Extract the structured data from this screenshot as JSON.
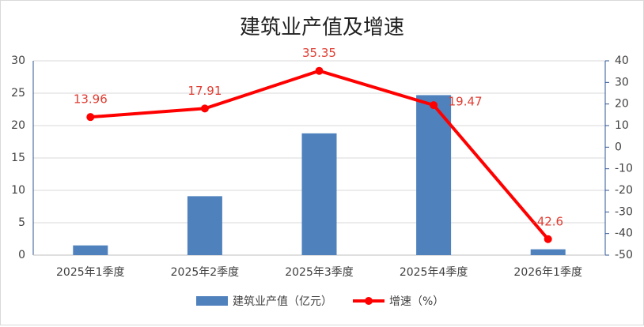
{
  "chart_data": {
    "type": "bar",
    "title": "建筑业产值及增速",
    "categories": [
      "2025年1季度",
      "2025年2季度",
      "2025年3季度",
      "2025年4季度",
      "2026年1季度"
    ],
    "series": [
      {
        "name": "建筑业产值（亿元）",
        "type": "bar",
        "color": "#4f81bd",
        "values": [
          1.5,
          9.1,
          18.8,
          24.7,
          0.9
        ]
      },
      {
        "name": "增速（%）",
        "type": "line",
        "axis": "y2",
        "color": "#ff0000",
        "values": [
          13.96,
          17.91,
          35.35,
          19.47,
          -42.6
        ],
        "label_color": "#e03c31"
      }
    ],
    "ylim": [
      0,
      30
    ],
    "yticks": [
      0,
      5,
      10,
      15,
      20,
      25,
      30
    ],
    "y2lim": [
      -50,
      40
    ],
    "y2ticks": [
      -50,
      -40,
      -30,
      -20,
      -10,
      0,
      10,
      20,
      30,
      40
    ],
    "grid": true,
    "legend": "bottom"
  }
}
